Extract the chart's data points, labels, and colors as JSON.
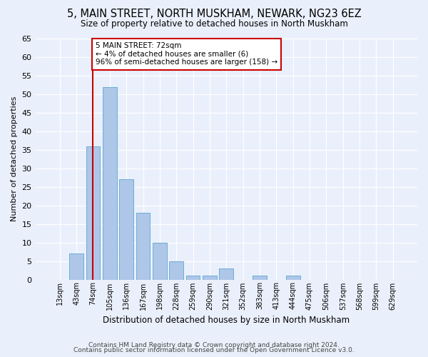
{
  "title": "5, MAIN STREET, NORTH MUSKHAM, NEWARK, NG23 6EZ",
  "subtitle": "Size of property relative to detached houses in North Muskham",
  "xlabel": "Distribution of detached houses by size in North Muskham",
  "ylabel": "Number of detached properties",
  "footer1": "Contains HM Land Registry data © Crown copyright and database right 2024.",
  "footer2": "Contains public sector information licensed under the Open Government Licence v3.0.",
  "bar_labels": [
    "13sqm",
    "43sqm",
    "74sqm",
    "105sqm",
    "136sqm",
    "167sqm",
    "198sqm",
    "228sqm",
    "259sqm",
    "290sqm",
    "321sqm",
    "352sqm",
    "383sqm",
    "413sqm",
    "444sqm",
    "475sqm",
    "506sqm",
    "537sqm",
    "568sqm",
    "599sqm",
    "629sqm"
  ],
  "bar_values": [
    0,
    7,
    36,
    52,
    27,
    18,
    10,
    5,
    1,
    1,
    3,
    0,
    1,
    0,
    1,
    0,
    0,
    0,
    0,
    0,
    0
  ],
  "bar_color": "#aec6e8",
  "bar_edgecolor": "#6aaed6",
  "property_line_index": 2,
  "property_line_color": "#cc0000",
  "annotation_text": "5 MAIN STREET: 72sqm\n← 4% of detached houses are smaller (6)\n96% of semi-detached houses are larger (158) →",
  "annotation_box_color": "#cc0000",
  "annotation_bg_color": "#ffffff",
  "bg_color": "#eaf0fb",
  "grid_color": "#ffffff",
  "ylim": [
    0,
    65
  ],
  "yticks": [
    0,
    5,
    10,
    15,
    20,
    25,
    30,
    35,
    40,
    45,
    50,
    55,
    60,
    65
  ]
}
